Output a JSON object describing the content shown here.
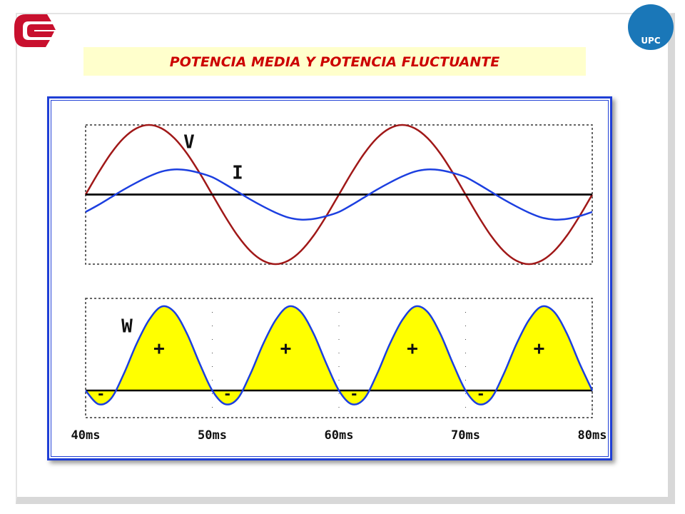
{
  "title": "POTENCIA MEDIA Y POTENCIA FLUCTUANTE",
  "logo_text": "UPC",
  "chart_data": [
    {
      "type": "line",
      "x": [
        40,
        41,
        42,
        43,
        44,
        45,
        46,
        47,
        48,
        49,
        50,
        51,
        52,
        53,
        54,
        55,
        56,
        57,
        58,
        59,
        60,
        61,
        62,
        63,
        64,
        65,
        66,
        67,
        68,
        69,
        70,
        71,
        72,
        73,
        74,
        75,
        76,
        77,
        78,
        79,
        80
      ],
      "xlim": [
        40,
        80
      ],
      "ylim": [
        -1,
        1
      ],
      "series": [
        {
          "name": "V",
          "color": "#a01818",
          "values": [
            0,
            0.31,
            0.59,
            0.81,
            0.95,
            1,
            0.95,
            0.81,
            0.59,
            0.31,
            0,
            -0.31,
            -0.59,
            -0.81,
            -0.95,
            -1,
            -0.95,
            -0.81,
            -0.59,
            -0.31,
            0,
            0.31,
            0.59,
            0.81,
            0.95,
            1,
            0.95,
            0.81,
            0.59,
            0.31,
            0,
            -0.31,
            -0.59,
            -0.81,
            -0.95,
            -1,
            -0.95,
            -0.81,
            -0.59,
            -0.31,
            0
          ]
        },
        {
          "name": "I",
          "color": "#1c3fe0",
          "values": [
            -0.25,
            -0.15,
            -0.04,
            0.07,
            0.17,
            0.26,
            0.33,
            0.36,
            0.35,
            0.31,
            0.25,
            0.15,
            0.04,
            -0.07,
            -0.17,
            -0.26,
            -0.33,
            -0.36,
            -0.35,
            -0.31,
            -0.25,
            -0.15,
            -0.04,
            0.07,
            0.17,
            0.26,
            0.33,
            0.36,
            0.35,
            0.31,
            0.25,
            0.15,
            0.04,
            -0.07,
            -0.17,
            -0.26,
            -0.33,
            -0.36,
            -0.35,
            -0.31,
            -0.25
          ]
        }
      ]
    },
    {
      "type": "area",
      "x": [
        40,
        41,
        42,
        43,
        44,
        45,
        46,
        47,
        48,
        49,
        50,
        51,
        52,
        53,
        54,
        55,
        56,
        57,
        58,
        59,
        60,
        61,
        62,
        63,
        64,
        65,
        66,
        67,
        68,
        69,
        70,
        71,
        72,
        73,
        74,
        75,
        76,
        77,
        78,
        79,
        80
      ],
      "xlim": [
        40,
        80
      ],
      "ylim": [
        -0.1,
        0.34
      ],
      "xticks": [
        {
          "value": 40,
          "label": "40ms"
        },
        {
          "value": 50,
          "label": "50ms"
        },
        {
          "value": 60,
          "label": "60ms"
        },
        {
          "value": 70,
          "label": "70ms"
        },
        {
          "value": 80,
          "label": "80ms"
        }
      ],
      "series": [
        {
          "name": "W",
          "color": "#1c3fe0",
          "fill": "#ffff00",
          "values": [
            0,
            -0.05,
            -0.03,
            0.06,
            0.17,
            0.26,
            0.31,
            0.29,
            0.21,
            0.1,
            0,
            -0.05,
            -0.03,
            0.06,
            0.17,
            0.26,
            0.31,
            0.29,
            0.21,
            0.1,
            0,
            -0.05,
            -0.03,
            0.06,
            0.17,
            0.26,
            0.31,
            0.29,
            0.21,
            0.1,
            0,
            -0.05,
            -0.03,
            0.06,
            0.17,
            0.26,
            0.31,
            0.29,
            0.21,
            0.1,
            0
          ]
        }
      ],
      "annotations": [
        "-",
        "+",
        "-",
        "+",
        "-",
        "+",
        "-",
        "+"
      ]
    }
  ]
}
